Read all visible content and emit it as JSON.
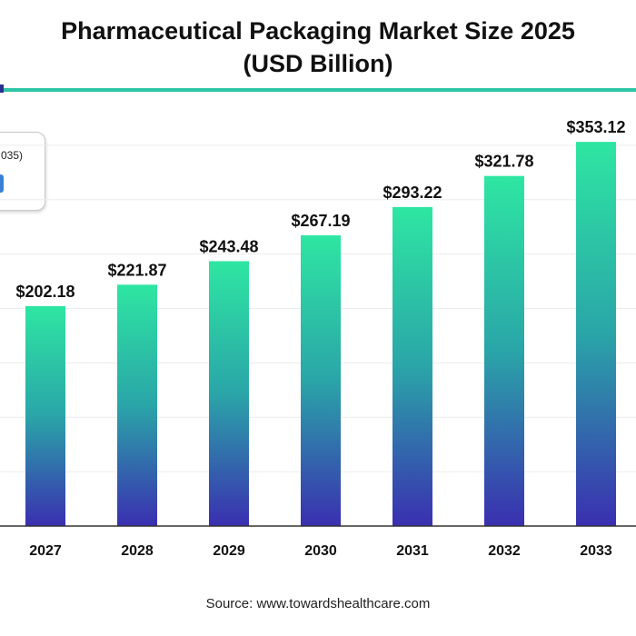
{
  "title": {
    "line1": "Pharmaceutical Packaging Market Size 2025",
    "line2": "(USD Billion)"
  },
  "legend": {
    "text": "035)"
  },
  "source": "Source: www.towardshealthcare.com",
  "colors": {
    "accent_rule": "#2ec4a6",
    "bar_top": "#2ee6a2",
    "bar_mid": "#2aa5a8",
    "bar_bottom": "#3a2fb0"
  },
  "chart_data": {
    "type": "bar",
    "categories": [
      "2027",
      "2028",
      "2029",
      "2030",
      "2031",
      "2032",
      "2033"
    ],
    "values": [
      202.18,
      221.87,
      243.48,
      267.19,
      293.22,
      321.78,
      353.12
    ],
    "value_labels": [
      "$202.18",
      "$221.87",
      "$243.48",
      "$267.19",
      "$293.22",
      "$321.78",
      "$353.12"
    ],
    "title": "Pharmaceutical Packaging Market Size 2025 (USD Billion)",
    "ylim": [
      0,
      400
    ],
    "grid": true
  }
}
